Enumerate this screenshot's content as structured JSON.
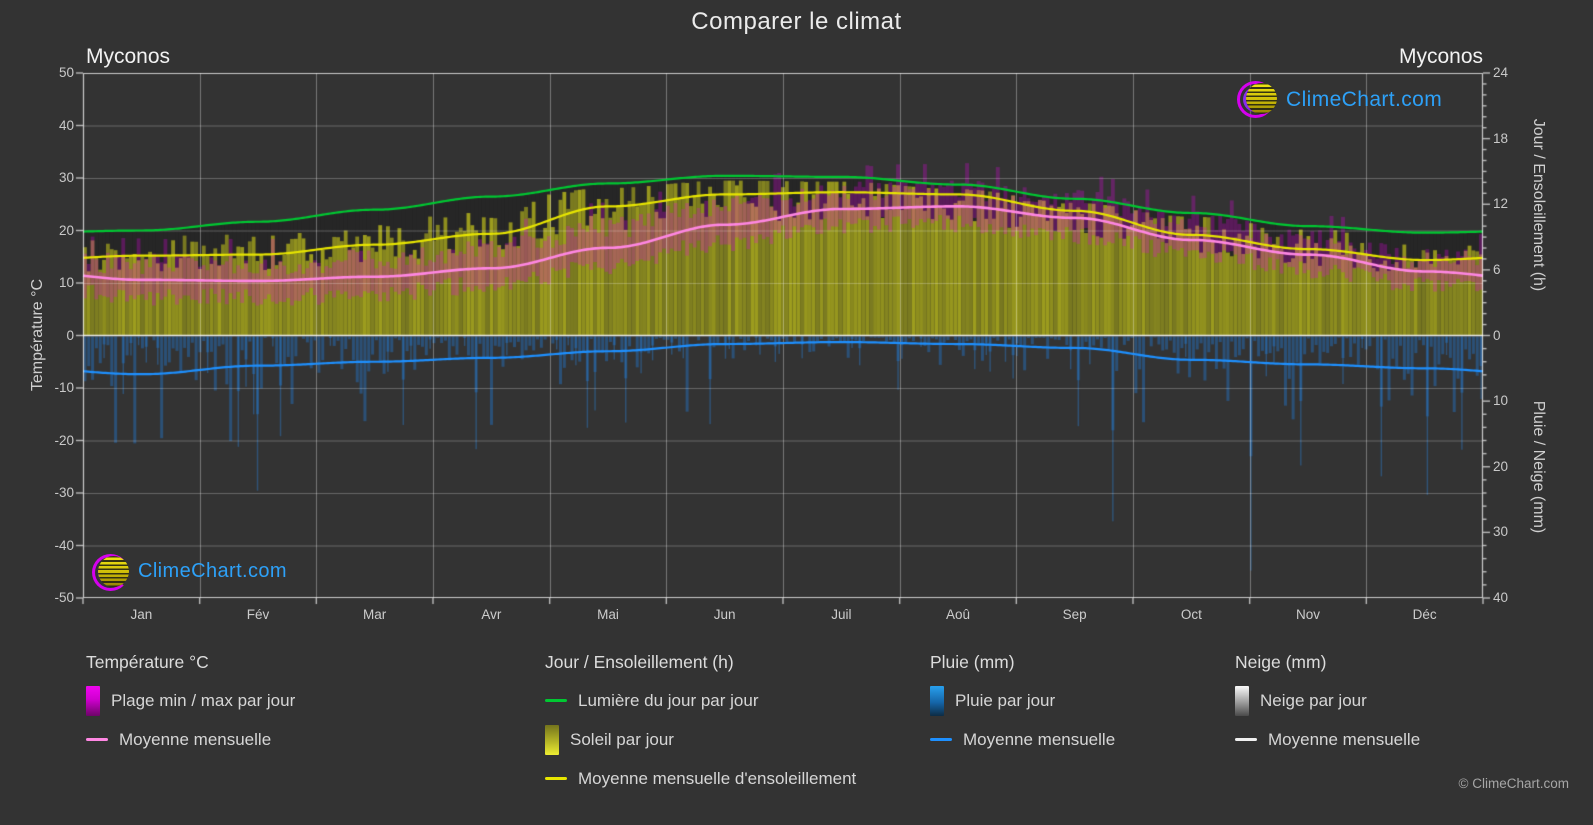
{
  "title": "Comparer le climat",
  "station_left": "Myconos",
  "station_right": "Myconos",
  "watermark_text": "ClimeChart.com",
  "copyright": "© ClimeChart.com",
  "axes": {
    "left_label": "Température °C",
    "left_ticks": [
      50,
      40,
      30,
      20,
      10,
      0,
      -10,
      -20,
      -30,
      -40,
      -50
    ],
    "right_top_label": "Jour / Ensoleillement (h)",
    "right_top_ticks": [
      24,
      18,
      12,
      6,
      0
    ],
    "right_bottom_label": "Pluie / Neige (mm)",
    "right_bottom_ticks": [
      0,
      10,
      20,
      30,
      40
    ]
  },
  "legend": {
    "groups": [
      {
        "header": "Température °C",
        "items": [
          {
            "swatch": "grad-magenta",
            "label": "Plage min / max par jour"
          },
          {
            "swatch": "line-pink",
            "label": "Moyenne mensuelle"
          }
        ]
      },
      {
        "header": "Jour / Ensoleillement (h)",
        "items": [
          {
            "swatch": "line-green",
            "label": "Lumière du jour par jour"
          },
          {
            "swatch": "grad-yellow",
            "label": "Soleil par jour"
          },
          {
            "swatch": "line-yellow",
            "label": "Moyenne mensuelle d'ensoleillement"
          }
        ]
      },
      {
        "header": "Pluie (mm)",
        "items": [
          {
            "swatch": "grad-blue",
            "label": "Pluie par jour"
          },
          {
            "swatch": "line-blue",
            "label": "Moyenne mensuelle"
          }
        ]
      },
      {
        "header": "Neige (mm)",
        "items": [
          {
            "swatch": "grad-white",
            "label": "Neige par jour"
          },
          {
            "swatch": "line-white",
            "label": "Moyenne mensuelle"
          }
        ]
      }
    ]
  },
  "colors": {
    "background": "#333333",
    "daylight_line": "#00c832",
    "sunshine_line": "#e8e600",
    "temp_mean_line": "#ff87e3",
    "rain_mean_line": "#1e90ff",
    "snow_mean_line": "#f0f0f0",
    "sun_fill": "#9a9a28",
    "temp_range_fill": "#e800e8",
    "rain_fill": "#2370b9",
    "logo_text": "#2da1f8",
    "logo_magenta": "#d400ee",
    "logo_yellow": "#e8d80e"
  },
  "chart_data": {
    "type": "area",
    "title": "Comparer le climat",
    "station": "Myconos",
    "months": [
      "Jan",
      "Fév",
      "Mar",
      "Avr",
      "Mai",
      "Jun",
      "Juil",
      "Aoû",
      "Sep",
      "Oct",
      "Nov",
      "Déc"
    ],
    "ylim_temp_c": [
      -50,
      50
    ],
    "ylim_sun_h": [
      0,
      24
    ],
    "ylim_rain_mm": [
      0,
      40
    ],
    "grid": true,
    "legend_position": "bottom",
    "series": [
      {
        "name": "daylight_hours_mean",
        "unit": "h",
        "values": [
          9.6,
          10.4,
          11.5,
          12.7,
          13.9,
          14.6,
          14.5,
          13.8,
          12.5,
          11.2,
          10.0,
          9.4
        ]
      },
      {
        "name": "sunshine_hours_mean",
        "unit": "h",
        "values": [
          7.3,
          7.4,
          8.3,
          9.3,
          11.8,
          12.9,
          13.1,
          12.9,
          11.4,
          9.2,
          7.9,
          6.9
        ]
      },
      {
        "name": "temp_mean_c",
        "unit": "°C",
        "values": [
          10.6,
          10.4,
          11.2,
          12.8,
          16.7,
          21.1,
          24.1,
          24.6,
          22.4,
          18.2,
          15.4,
          12.2
        ]
      },
      {
        "name": "temp_min_daily_c",
        "unit": "°C",
        "values": [
          7.5,
          7.2,
          8.0,
          9.6,
          13.2,
          17.6,
          20.8,
          21.2,
          19.2,
          15.8,
          12.6,
          9.6
        ]
      },
      {
        "name": "temp_max_daily_c",
        "unit": "°C",
        "values": [
          13.8,
          13.6,
          14.6,
          16.6,
          20.6,
          25.2,
          27.6,
          28.0,
          26.0,
          21.8,
          18.4,
          15.0
        ]
      },
      {
        "name": "rain_monthly_mean_mm",
        "unit": "mm",
        "values": [
          5.9,
          4.6,
          4.0,
          3.4,
          2.4,
          1.3,
          1.0,
          1.3,
          1.9,
          3.7,
          4.4,
          5.0
        ]
      },
      {
        "name": "snow_monthly_mean_mm",
        "unit": "mm",
        "values": [
          0,
          0,
          0,
          0,
          0,
          0,
          0,
          0,
          0,
          0,
          0,
          0
        ]
      }
    ]
  }
}
